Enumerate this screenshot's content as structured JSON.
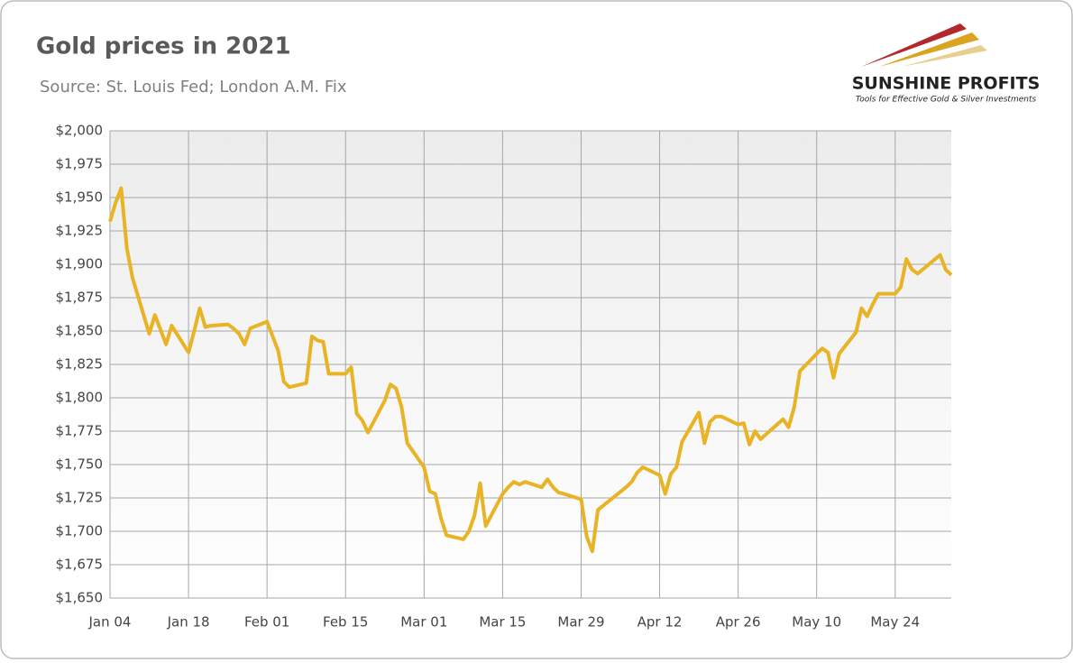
{
  "chart_data": {
    "type": "line",
    "title": "Gold prices in 2021",
    "subtitle": "Source: St. Louis Fed; London A.M. Fix",
    "logo": {
      "name": "SUNSHINE PROFITS",
      "tagline": "Tools for Effective Gold & Silver Investments"
    },
    "x": [
      "Jan 04",
      "Jan 05",
      "Jan 06",
      "Jan 07",
      "Jan 08",
      "Jan 11",
      "Jan 12",
      "Jan 13",
      "Jan 14",
      "Jan 15",
      "Jan 18",
      "Jan 19",
      "Jan 20",
      "Jan 21",
      "Jan 22",
      "Jan 25",
      "Jan 26",
      "Jan 27",
      "Jan 28",
      "Jan 29",
      "Feb 01",
      "Feb 02",
      "Feb 03",
      "Feb 04",
      "Feb 05",
      "Feb 08",
      "Feb 09",
      "Feb 10",
      "Feb 11",
      "Feb 12",
      "Feb 15",
      "Feb 16",
      "Feb 17",
      "Feb 18",
      "Feb 19",
      "Feb 22",
      "Feb 23",
      "Feb 24",
      "Feb 25",
      "Feb 26",
      "Mar 01",
      "Mar 02",
      "Mar 03",
      "Mar 04",
      "Mar 05",
      "Mar 08",
      "Mar 09",
      "Mar 10",
      "Mar 11",
      "Mar 12",
      "Mar 15",
      "Mar 16",
      "Mar 17",
      "Mar 18",
      "Mar 19",
      "Mar 22",
      "Mar 23",
      "Mar 24",
      "Mar 25",
      "Mar 26",
      "Mar 29",
      "Mar 30",
      "Mar 31",
      "Apr 01",
      "Apr 06",
      "Apr 07",
      "Apr 08",
      "Apr 09",
      "Apr 12",
      "Apr 13",
      "Apr 14",
      "Apr 15",
      "Apr 16",
      "Apr 19",
      "Apr 20",
      "Apr 21",
      "Apr 22",
      "Apr 23",
      "Apr 26",
      "Apr 27",
      "Apr 28",
      "Apr 29",
      "Apr 30",
      "May 04",
      "May 05",
      "May 06",
      "May 07",
      "May 10",
      "May 11",
      "May 12",
      "May 13",
      "May 14",
      "May 17",
      "May 18",
      "May 19",
      "May 20",
      "May 21",
      "May 24",
      "May 25",
      "May 26",
      "May 27",
      "May 28",
      "Jun 01",
      "Jun 02",
      "Jun 03"
    ],
    "series": [
      {
        "name": "Gold price",
        "color": "#e8b425",
        "values": [
          1932,
          1946,
          1957,
          1912,
          1890,
          1848,
          1862,
          1851,
          1840,
          1854,
          1834,
          1850,
          1867,
          1853,
          1854,
          1855,
          1852,
          1848,
          1840,
          1852,
          1857,
          1846,
          1835,
          1812,
          1808,
          1811,
          1846,
          1843,
          1842,
          1818,
          1818,
          1823,
          1788,
          1783,
          1774,
          1798,
          1810,
          1807,
          1793,
          1766,
          1748,
          1730,
          1728,
          1710,
          1697,
          1694,
          1700,
          1712,
          1736,
          1704,
          1728,
          1733,
          1737,
          1735,
          1737,
          1733,
          1739,
          1733,
          1729,
          1728,
          1724,
          1696,
          1685,
          1716,
          1733,
          1737,
          1744,
          1748,
          1742,
          1728,
          1743,
          1748,
          1767,
          1789,
          1766,
          1782,
          1786,
          1786,
          1780,
          1781,
          1765,
          1775,
          1769,
          1784,
          1778,
          1793,
          1820,
          1833,
          1837,
          1834,
          1815,
          1833,
          1849,
          1867,
          1861,
          1870,
          1878,
          1878,
          1883,
          1904,
          1896,
          1893,
          1907,
          1896,
          1892
        ]
      }
    ],
    "xlim": [
      "Jan 04",
      "Jun 03"
    ],
    "xticks": [
      "Jan 04",
      "Jan 18",
      "Feb 01",
      "Feb 15",
      "Mar 01",
      "Mar 15",
      "Mar 29",
      "Apr 12",
      "Apr 26",
      "May 10",
      "May 24"
    ],
    "ylim": [
      1650,
      2000
    ],
    "yticks": [
      {
        "value": 1650,
        "label": "$1,650"
      },
      {
        "value": 1675,
        "label": "$1,675"
      },
      {
        "value": 1700,
        "label": "$1,700"
      },
      {
        "value": 1725,
        "label": "$1,725"
      },
      {
        "value": 1750,
        "label": "$1,750"
      },
      {
        "value": 1775,
        "label": "$1,775"
      },
      {
        "value": 1800,
        "label": "$1,800"
      },
      {
        "value": 1825,
        "label": "$1,825"
      },
      {
        "value": 1850,
        "label": "$1,850"
      },
      {
        "value": 1875,
        "label": "$1,875"
      },
      {
        "value": 1900,
        "label": "$1,900"
      },
      {
        "value": 1925,
        "label": "$1,925"
      },
      {
        "value": 1950,
        "label": "$1,950"
      },
      {
        "value": 1975,
        "label": "$1,975"
      },
      {
        "value": 2000,
        "label": "$2,000"
      }
    ],
    "grid": true
  }
}
